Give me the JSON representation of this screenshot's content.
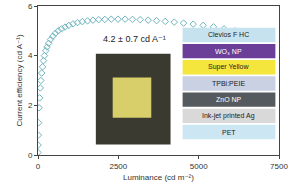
{
  "chart_data": {
    "type": "scatter",
    "x_label": "Luminance (cd m⁻²)",
    "y_label": "Current efficiency (cd A⁻¹)",
    "x": [
      0,
      5,
      10,
      20,
      35,
      50,
      70,
      90,
      115,
      140,
      170,
      200,
      240,
      280,
      330,
      390,
      460,
      540,
      630,
      730,
      840,
      960,
      1090,
      1230,
      1380,
      1540,
      1710,
      1890,
      2080,
      2280,
      2490,
      2710,
      2940,
      3180,
      3430,
      3690,
      3960,
      4240,
      4530,
      4830,
      5140,
      5460,
      5790,
      6130,
      6480,
      6700
    ],
    "values": [
      0.1,
      0.4,
      0.8,
      1.3,
      1.9,
      2.3,
      2.7,
      3.0,
      3.3,
      3.55,
      3.8,
      4.0,
      4.2,
      4.35,
      4.5,
      4.65,
      4.78,
      4.9,
      5.0,
      5.08,
      5.15,
      5.22,
      5.28,
      5.33,
      5.37,
      5.4,
      5.43,
      5.45,
      5.46,
      5.47,
      5.47,
      5.47,
      5.46,
      5.45,
      5.43,
      5.41,
      5.38,
      5.35,
      5.31,
      5.27,
      5.22,
      5.16,
      5.08,
      5.0,
      4.9,
      4.78
    ],
    "color": "#6fb5bd",
    "marker": "diamond-open",
    "xlim": [
      0,
      7500
    ],
    "xticks": [
      0,
      2500,
      5000,
      7500
    ],
    "ylim": [
      0,
      6
    ],
    "yticks": [
      0,
      2,
      4,
      6
    ],
    "grid": false,
    "annotations": [
      {
        "text": "4.2 ± 0.7 cd A⁻¹"
      }
    ],
    "layers": [
      {
        "name": "Clevios F HC",
        "color": "#c6e2ef"
      },
      {
        "name": "WO₃ NP",
        "color": "#6b3f98"
      },
      {
        "name": "Super Yellow",
        "color": "#f4e63c"
      },
      {
        "name": "TPBi:PEIE",
        "color": "#c9d1e3"
      },
      {
        "name": "ZnO NP",
        "color": "#555a5e"
      },
      {
        "name": "Ink-jet printed Ag",
        "color": "#d9d9d9"
      },
      {
        "name": "PET",
        "color": "#cde6f4"
      }
    ]
  }
}
